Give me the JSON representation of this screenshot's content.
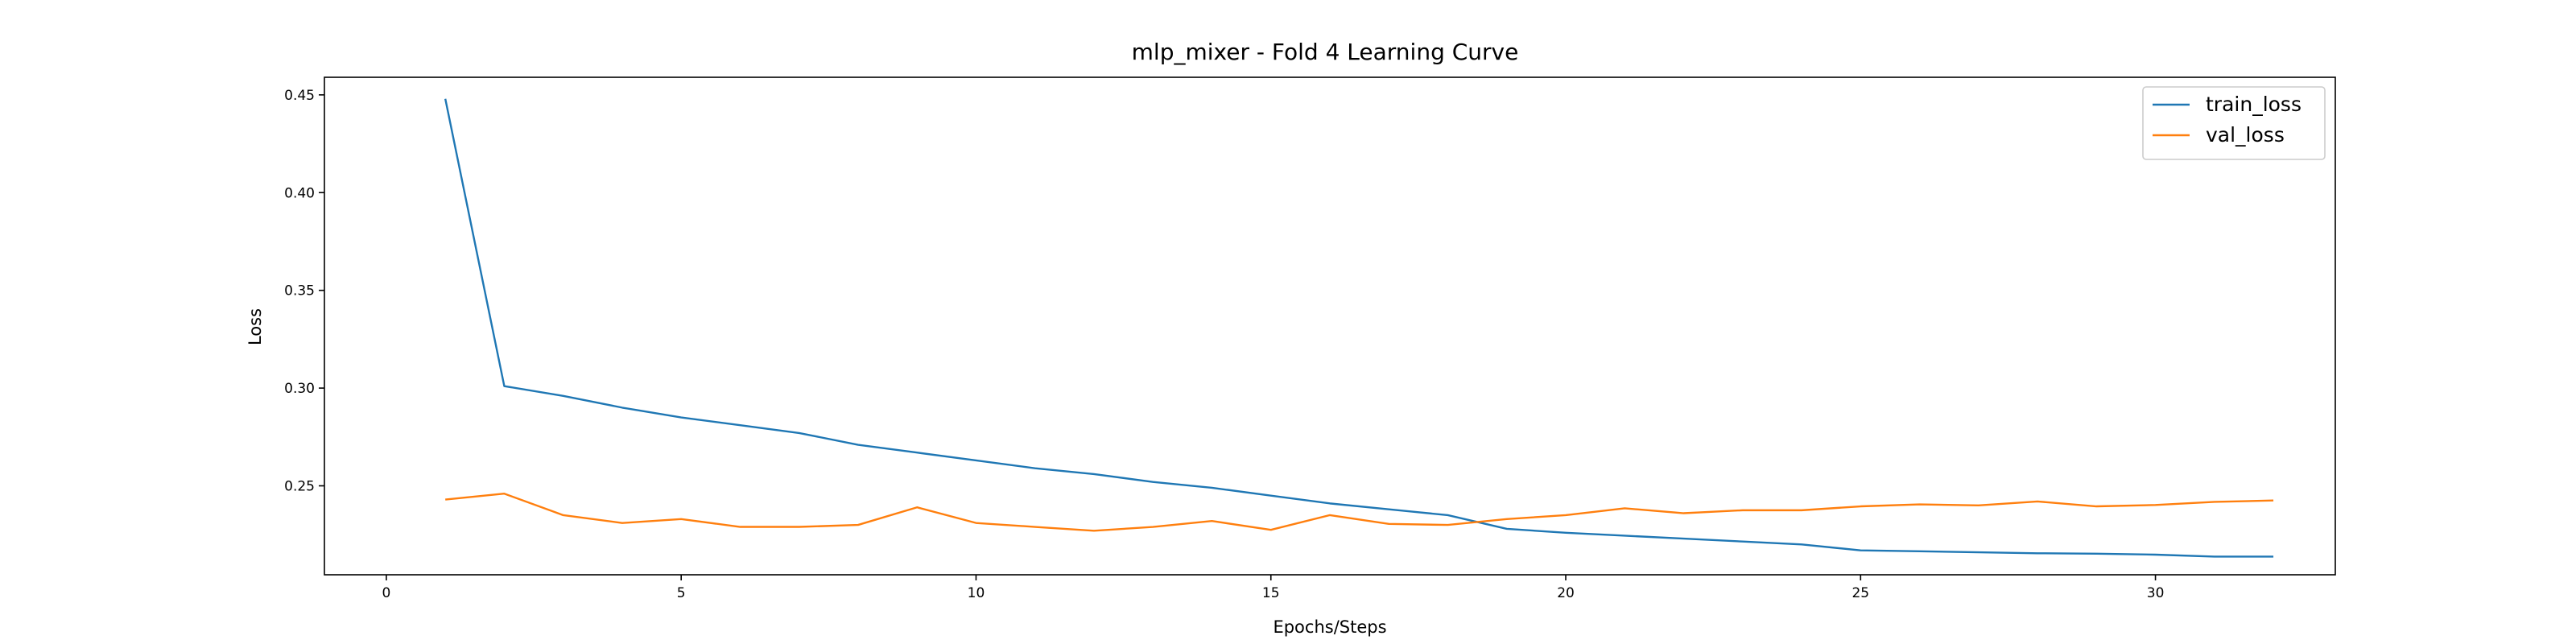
{
  "chart_data": {
    "type": "line",
    "title": "mlp_mixer - Fold 4 Learning Curve",
    "xlabel": "Epochs/Steps",
    "ylabel": "Loss",
    "xlim": [
      -1.05,
      33.05
    ],
    "ylim": [
      0.2045,
      0.459
    ],
    "xticks": [
      0,
      5,
      10,
      15,
      20,
      25,
      30
    ],
    "xtick_labels": [
      "0",
      "5",
      "10",
      "15",
      "20",
      "25",
      "30"
    ],
    "yticks": [
      0.25,
      0.3,
      0.35,
      0.4,
      0.45
    ],
    "ytick_labels": [
      "0.25",
      "0.30",
      "0.35",
      "0.40",
      "0.45"
    ],
    "grid": false,
    "legend_position": "top-right",
    "x": [
      1,
      2,
      3,
      4,
      5,
      6,
      7,
      8,
      9,
      10,
      11,
      12,
      13,
      14,
      15,
      16,
      17,
      18,
      19,
      20,
      21,
      22,
      23,
      24,
      25,
      26,
      27,
      28,
      29,
      30,
      31,
      32
    ],
    "series": [
      {
        "name": "train_loss",
        "color": "#1f77b4",
        "values": [
          0.448,
          0.301,
          0.296,
          0.29,
          0.285,
          0.281,
          0.277,
          0.271,
          0.267,
          0.263,
          0.259,
          0.256,
          0.252,
          0.249,
          0.245,
          0.241,
          0.238,
          0.235,
          0.228,
          0.226,
          0.2245,
          0.223,
          0.2215,
          0.22,
          0.217,
          0.2165,
          0.216,
          0.2155,
          0.2153,
          0.2148,
          0.2138,
          0.2138
        ]
      },
      {
        "name": "val_loss",
        "color": "#ff7f0e",
        "values": [
          0.243,
          0.246,
          0.235,
          0.231,
          0.233,
          0.229,
          0.229,
          0.23,
          0.239,
          0.231,
          0.229,
          0.227,
          0.229,
          0.232,
          0.2275,
          0.235,
          0.2305,
          0.23,
          0.233,
          0.235,
          0.2385,
          0.236,
          0.2375,
          0.2375,
          0.2395,
          0.2405,
          0.24,
          0.242,
          0.2395,
          0.2402,
          0.2418,
          0.2425
        ]
      }
    ]
  }
}
